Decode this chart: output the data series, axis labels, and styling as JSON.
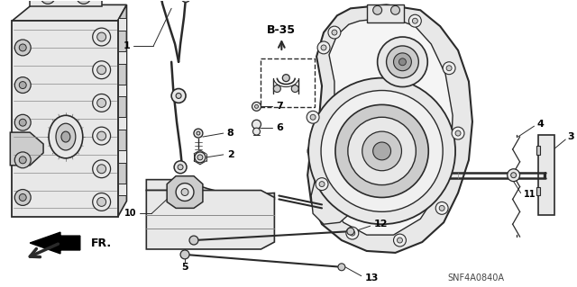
{
  "background_color": "#ffffff",
  "diagram_code": "SNF4A0840A",
  "ref_label": "B-35",
  "direction_label": "FR.",
  "figsize": [
    6.4,
    3.19
  ],
  "dpi": 100,
  "line_color": "#2a2a2a",
  "light_gray": "#e8e8e8",
  "mid_gray": "#cccccc",
  "dark_gray": "#aaaaaa"
}
